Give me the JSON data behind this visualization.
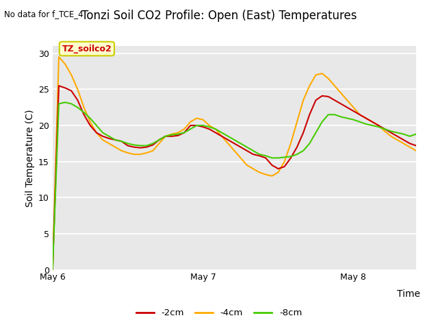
{
  "title": "Tonzi Soil CO2 Profile: Open (East) Temperatures",
  "no_data_text": "No data for f_TCE_4",
  "ylabel": "Soil Temperature (C)",
  "xlabel": "Time",
  "annotation_text": "TZ_soilco2",
  "xtick_labels": [
    "May 6",
    "May 7",
    "May 8"
  ],
  "ylim": [
    0,
    31
  ],
  "yticks": [
    0,
    5,
    10,
    15,
    20,
    25,
    30
  ],
  "legend_labels": [
    "-2cm",
    "-4cm",
    "-8cm"
  ],
  "legend_colors": [
    "#cc0000",
    "#ffaa00",
    "#44cc00"
  ],
  "bg_color": "#e8e8e8",
  "line_2cm": [
    0.05,
    25.5,
    25.2,
    24.8,
    23.5,
    21.5,
    20.0,
    19.0,
    18.5,
    18.2,
    18.0,
    17.8,
    17.2,
    17.0,
    16.9,
    17.0,
    17.3,
    18.0,
    18.5,
    18.5,
    18.6,
    19.0,
    20.0,
    20.0,
    19.8,
    19.5,
    19.0,
    18.5,
    18.0,
    17.5,
    17.0,
    16.5,
    16.0,
    15.8,
    15.5,
    14.5,
    14.0,
    14.3,
    15.5,
    17.0,
    19.0,
    21.5,
    23.5,
    24.1,
    24.0,
    23.5,
    23.0,
    22.5,
    22.0,
    21.5,
    21.0,
    20.5,
    20.0,
    19.5,
    19.0,
    18.5,
    18.0,
    17.5,
    17.2
  ],
  "line_4cm": [
    0.0,
    29.5,
    28.5,
    27.0,
    25.0,
    22.5,
    20.5,
    19.0,
    18.0,
    17.5,
    17.0,
    16.5,
    16.2,
    16.0,
    16.0,
    16.2,
    16.5,
    17.5,
    18.5,
    18.8,
    19.0,
    19.5,
    20.5,
    21.0,
    20.8,
    20.0,
    19.5,
    18.5,
    17.5,
    16.5,
    15.5,
    14.5,
    14.0,
    13.5,
    13.2,
    13.0,
    13.5,
    15.0,
    17.5,
    20.5,
    23.5,
    25.5,
    27.0,
    27.2,
    26.5,
    25.5,
    24.5,
    23.5,
    22.5,
    21.5,
    21.0,
    20.5,
    20.0,
    19.2,
    18.5,
    18.0,
    17.5,
    17.0,
    16.5
  ],
  "line_8cm": [
    0.05,
    23.0,
    23.2,
    23.0,
    22.5,
    21.8,
    21.0,
    20.0,
    19.0,
    18.5,
    18.0,
    17.8,
    17.5,
    17.3,
    17.2,
    17.2,
    17.5,
    18.0,
    18.5,
    18.7,
    18.8,
    19.0,
    19.5,
    20.0,
    20.0,
    19.8,
    19.5,
    19.0,
    18.5,
    18.0,
    17.5,
    17.0,
    16.5,
    16.0,
    15.8,
    15.5,
    15.5,
    15.6,
    15.7,
    16.0,
    16.5,
    17.5,
    19.0,
    20.5,
    21.5,
    21.5,
    21.2,
    21.0,
    20.8,
    20.5,
    20.2,
    20.0,
    19.8,
    19.5,
    19.2,
    19.0,
    18.8,
    18.5,
    18.8
  ],
  "n_points": 59,
  "x_tick_positions": [
    0,
    24,
    48
  ],
  "title_fontsize": 12,
  "label_fontsize": 10,
  "tick_fontsize": 9
}
